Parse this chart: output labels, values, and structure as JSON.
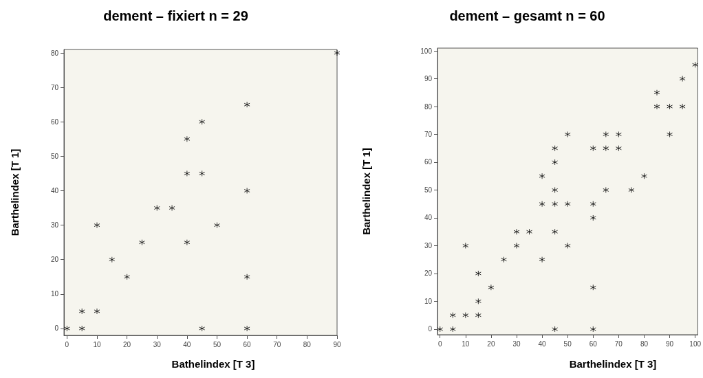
{
  "chart_data": [
    {
      "type": "scatter",
      "title": "dement – fixiert n = 29",
      "xlabel": "Bathelindex [T 3]",
      "ylabel": "Barthelindex [T 1]",
      "marker": "cross",
      "grid": false,
      "xlim": [
        -1,
        90
      ],
      "ylim": [
        -2,
        81
      ],
      "xticks": [
        0,
        10,
        20,
        30,
        40,
        50,
        60,
        70,
        80,
        90
      ],
      "yticks": [
        0,
        10,
        20,
        30,
        40,
        50,
        60,
        70,
        80
      ],
      "series": [
        {
          "color": "#000000",
          "x": [
            0,
            5,
            5,
            10,
            10,
            15,
            20,
            25,
            30,
            35,
            40,
            40,
            40,
            45,
            45,
            45,
            50,
            60,
            60,
            60,
            60,
            90
          ],
          "values": [
            0,
            0,
            5,
            5,
            30,
            20,
            15,
            25,
            35,
            35,
            55,
            45,
            25,
            60,
            45,
            0,
            30,
            65,
            40,
            15,
            0,
            80
          ]
        }
      ]
    },
    {
      "type": "scatter",
      "title": "dement – gesamt n = 60",
      "xlabel": "Barthelindex [T 3]",
      "ylabel": "Barthelindex [T 1]",
      "marker": "cross",
      "grid": false,
      "xlim": [
        -1,
        101
      ],
      "ylim": [
        -2,
        101
      ],
      "xticks": [
        0,
        10,
        20,
        30,
        40,
        50,
        60,
        70,
        80,
        90,
        100
      ],
      "yticks": [
        0,
        10,
        20,
        30,
        40,
        50,
        60,
        70,
        80,
        90,
        100
      ],
      "series": [
        {
          "color": "#000000",
          "x": [
            0,
            5,
            5,
            10,
            10,
            15,
            15,
            15,
            20,
            25,
            30,
            30,
            35,
            40,
            40,
            40,
            45,
            45,
            45,
            45,
            45,
            45,
            50,
            50,
            50,
            60,
            60,
            60,
            60,
            60,
            65,
            65,
            65,
            70,
            70,
            75,
            80,
            85,
            85,
            90,
            90,
            95,
            95,
            100
          ],
          "values": [
            0,
            0,
            5,
            5,
            30,
            20,
            10,
            5,
            15,
            25,
            35,
            30,
            35,
            55,
            45,
            25,
            65,
            60,
            50,
            45,
            35,
            0,
            70,
            45,
            30,
            65,
            45,
            40,
            15,
            0,
            70,
            65,
            50,
            70,
            65,
            50,
            55,
            85,
            80,
            80,
            70,
            90,
            80,
            95
          ]
        }
      ]
    }
  ]
}
